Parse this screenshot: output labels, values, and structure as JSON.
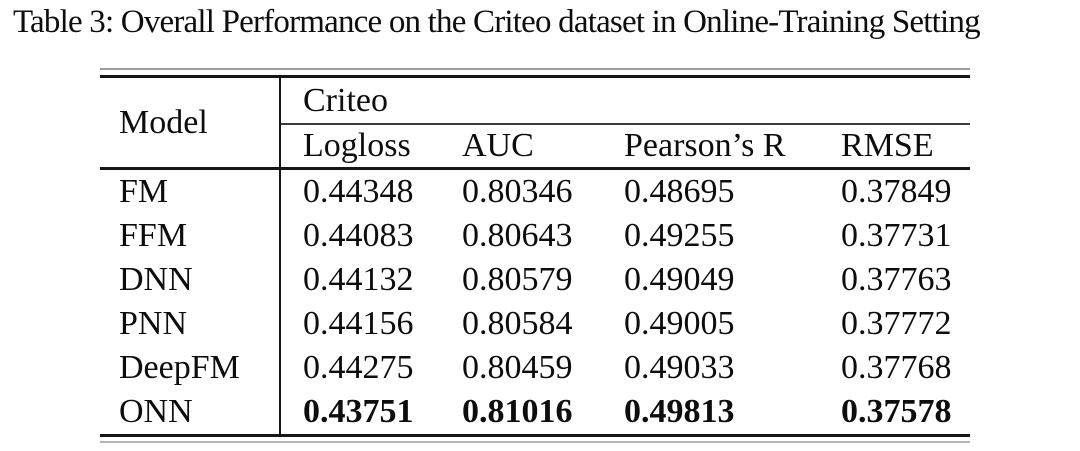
{
  "caption": "Table 3: Overall Performance on the Criteo dataset in Online-Training Setting",
  "colors": {
    "text": "#0d0d0d",
    "background": "#ffffff",
    "rule": "#161616"
  },
  "chart_data": {
    "type": "table",
    "title": "Table 3: Overall Performance on the Criteo dataset in Online-Training Setting",
    "row_header": "Model",
    "group_header": "Criteo",
    "columns": [
      "Logloss",
      "AUC",
      "Pearson’s R",
      "RMSE"
    ],
    "rows": [
      {
        "model": "FM",
        "values": [
          "0.44348",
          "0.80346",
          "0.48695",
          "0.37849"
        ],
        "bold": false
      },
      {
        "model": "FFM",
        "values": [
          "0.44083",
          "0.80643",
          "0.49255",
          "0.37731"
        ],
        "bold": false
      },
      {
        "model": "DNN",
        "values": [
          "0.44132",
          "0.80579",
          "0.49049",
          "0.37763"
        ],
        "bold": false
      },
      {
        "model": "PNN",
        "values": [
          "0.44156",
          "0.80584",
          "0.49005",
          "0.37772"
        ],
        "bold": false
      },
      {
        "model": "DeepFM",
        "values": [
          "0.44275",
          "0.80459",
          "0.49033",
          "0.37768"
        ],
        "bold": false
      },
      {
        "model": "ONN",
        "values": [
          "0.43751",
          "0.81016",
          "0.49813",
          "0.37578"
        ],
        "bold": true
      }
    ]
  }
}
